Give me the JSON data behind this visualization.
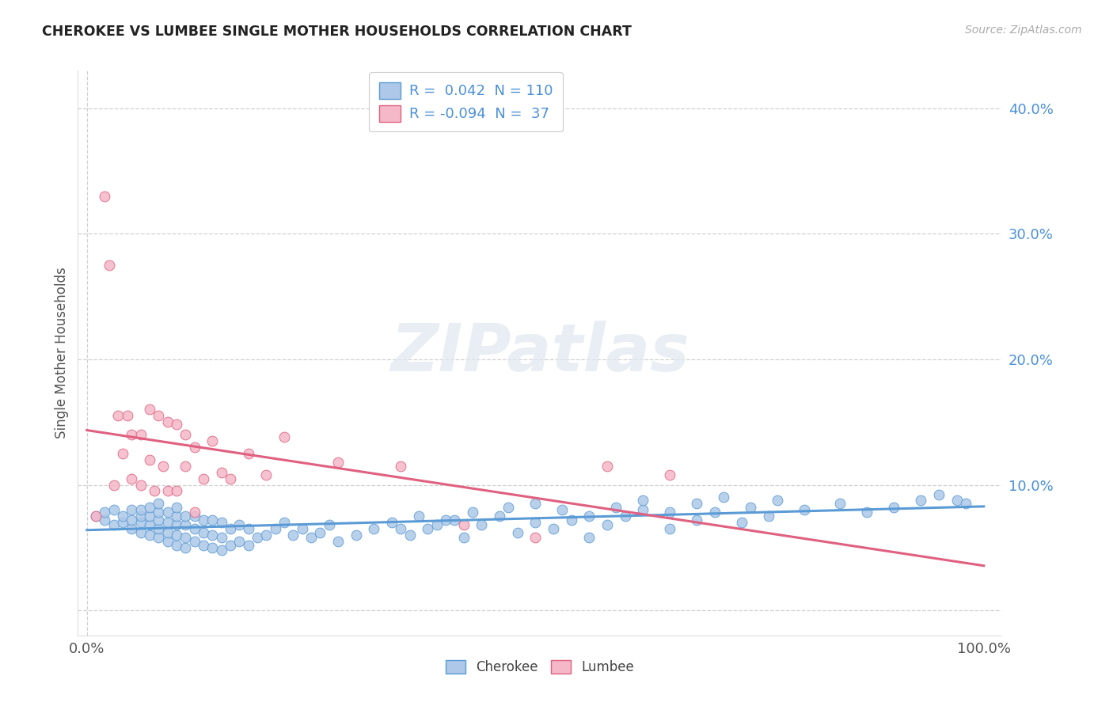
{
  "title": "CHEROKEE VS LUMBEE SINGLE MOTHER HOUSEHOLDS CORRELATION CHART",
  "source": "Source: ZipAtlas.com",
  "ylabel": "Single Mother Households",
  "xlim": [
    -0.01,
    1.02
  ],
  "ylim": [
    -0.02,
    0.43
  ],
  "cherokee_R": "0.042",
  "cherokee_N": "110",
  "lumbee_R": "-0.094",
  "lumbee_N": "37",
  "cherokee_fill": "#adc8e8",
  "lumbee_fill": "#f5b8c8",
  "cherokee_edge": "#5b9bd5",
  "lumbee_edge": "#e06080",
  "cherokee_line": "#5b9bd5",
  "lumbee_line": "#e06080",
  "text_blue": "#4a90d9",
  "ytick_vals": [
    0.0,
    0.1,
    0.2,
    0.3,
    0.4
  ],
  "ytick_labels": [
    "",
    "10.0%",
    "20.0%",
    "30.0%",
    "40.0%"
  ],
  "legend_label_cherokee": "Cherokee",
  "legend_label_lumbee": "Lumbee",
  "watermark": "ZIPatlas",
  "bg_color": "#ffffff",
  "grid_color": "#d0d0d0",
  "cherokee_x": [
    0.01,
    0.02,
    0.02,
    0.03,
    0.03,
    0.04,
    0.04,
    0.05,
    0.05,
    0.05,
    0.06,
    0.06,
    0.06,
    0.06,
    0.07,
    0.07,
    0.07,
    0.07,
    0.08,
    0.08,
    0.08,
    0.08,
    0.08,
    0.09,
    0.09,
    0.09,
    0.09,
    0.1,
    0.1,
    0.1,
    0.1,
    0.1,
    0.11,
    0.11,
    0.11,
    0.11,
    0.12,
    0.12,
    0.12,
    0.13,
    0.13,
    0.13,
    0.14,
    0.14,
    0.14,
    0.15,
    0.15,
    0.15,
    0.16,
    0.16,
    0.17,
    0.17,
    0.18,
    0.18,
    0.19,
    0.2,
    0.21,
    0.22,
    0.23,
    0.24,
    0.25,
    0.26,
    0.27,
    0.28,
    0.3,
    0.32,
    0.34,
    0.36,
    0.38,
    0.4,
    0.42,
    0.44,
    0.46,
    0.48,
    0.5,
    0.52,
    0.54,
    0.56,
    0.58,
    0.6,
    0.62,
    0.65,
    0.68,
    0.7,
    0.73,
    0.76,
    0.8,
    0.84,
    0.87,
    0.9,
    0.93,
    0.95,
    0.97,
    0.98,
    0.35,
    0.37,
    0.39,
    0.41,
    0.43,
    0.47,
    0.5,
    0.53,
    0.56,
    0.59,
    0.62,
    0.65,
    0.68,
    0.71,
    0.74,
    0.77
  ],
  "cherokee_y": [
    0.075,
    0.072,
    0.078,
    0.068,
    0.08,
    0.07,
    0.075,
    0.065,
    0.072,
    0.08,
    0.062,
    0.07,
    0.075,
    0.08,
    0.06,
    0.068,
    0.075,
    0.082,
    0.058,
    0.065,
    0.072,
    0.078,
    0.085,
    0.055,
    0.062,
    0.07,
    0.078,
    0.052,
    0.06,
    0.068,
    0.075,
    0.082,
    0.05,
    0.058,
    0.068,
    0.075,
    0.055,
    0.065,
    0.075,
    0.052,
    0.062,
    0.072,
    0.05,
    0.06,
    0.072,
    0.048,
    0.058,
    0.07,
    0.052,
    0.065,
    0.055,
    0.068,
    0.052,
    0.065,
    0.058,
    0.06,
    0.065,
    0.07,
    0.06,
    0.065,
    0.058,
    0.062,
    0.068,
    0.055,
    0.06,
    0.065,
    0.07,
    0.06,
    0.065,
    0.072,
    0.058,
    0.068,
    0.075,
    0.062,
    0.07,
    0.065,
    0.072,
    0.058,
    0.068,
    0.075,
    0.08,
    0.065,
    0.072,
    0.078,
    0.07,
    0.075,
    0.08,
    0.085,
    0.078,
    0.082,
    0.088,
    0.092,
    0.088,
    0.085,
    0.065,
    0.075,
    0.068,
    0.072,
    0.078,
    0.082,
    0.085,
    0.08,
    0.075,
    0.082,
    0.088,
    0.078,
    0.085,
    0.09,
    0.082,
    0.088
  ],
  "lumbee_x": [
    0.01,
    0.02,
    0.025,
    0.03,
    0.035,
    0.04,
    0.045,
    0.05,
    0.05,
    0.06,
    0.06,
    0.07,
    0.07,
    0.075,
    0.08,
    0.085,
    0.09,
    0.09,
    0.1,
    0.1,
    0.11,
    0.11,
    0.12,
    0.12,
    0.13,
    0.14,
    0.15,
    0.16,
    0.18,
    0.2,
    0.22,
    0.28,
    0.35,
    0.42,
    0.5,
    0.58,
    0.65
  ],
  "lumbee_y": [
    0.075,
    0.33,
    0.275,
    0.1,
    0.155,
    0.125,
    0.155,
    0.105,
    0.14,
    0.1,
    0.14,
    0.12,
    0.16,
    0.095,
    0.155,
    0.115,
    0.15,
    0.095,
    0.148,
    0.095,
    0.14,
    0.115,
    0.078,
    0.13,
    0.105,
    0.135,
    0.11,
    0.105,
    0.125,
    0.108,
    0.138,
    0.118,
    0.115,
    0.068,
    0.058,
    0.115,
    0.108
  ]
}
